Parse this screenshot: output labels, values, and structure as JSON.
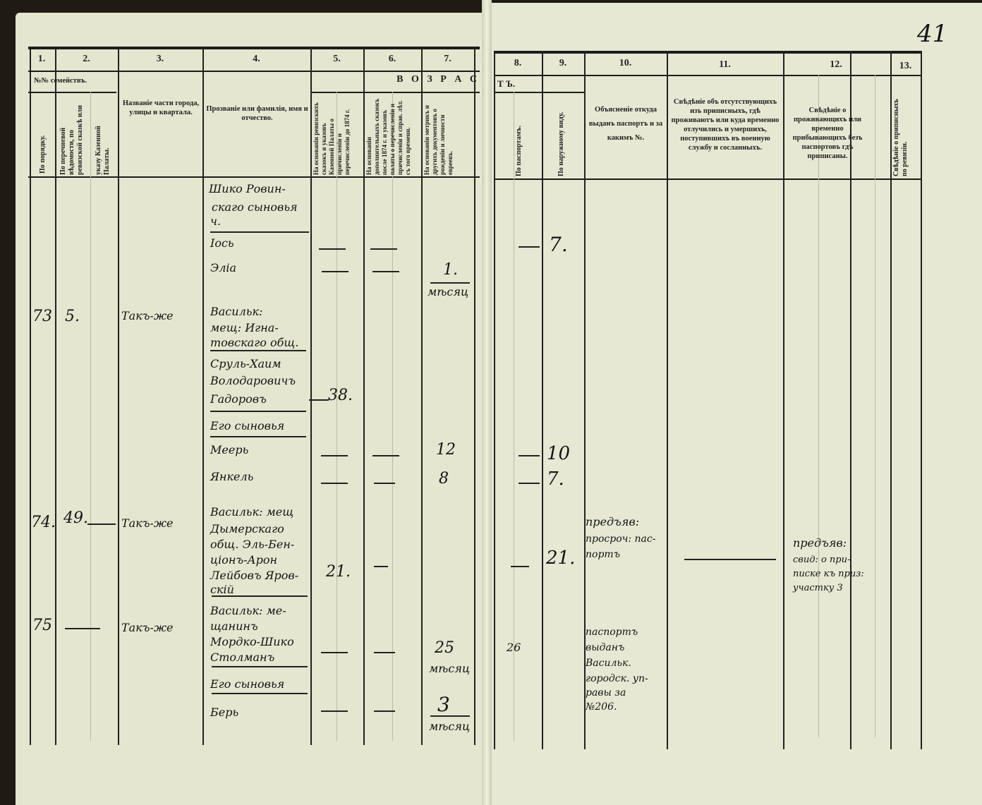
{
  "page_number": "41",
  "header": {
    "col_numbers": [
      "1.",
      "2.",
      "3.",
      "4.",
      "5.",
      "6.",
      "7.",
      "8.",
      "9.",
      "10.",
      "11.",
      "12.",
      "13."
    ],
    "families_label": "№№ семействъ.",
    "age_label_left": "В О З Р А С",
    "age_label_right": "Т Ъ.",
    "col1": "По порядку.",
    "col2a": "По перечневой вѣдомости, по ревизской сказкѣ или",
    "col2b": "указу Казенной Палаты.",
    "col3": "Названіе части города, улицы и квартала.",
    "col4": "Прозваніе или фамилія, имя и отчество.",
    "col5": "На основаніи ревизскихъ сказокъ и указовъ Казенной Палаты о причисленіи и перечисленіи до 1874 г.",
    "col6": "На основаніи дополнительныхъ сказокъ после 1874 г. и указовъ палаты о перечисленіи и причисленіи и справ. лѣт. съ того времени.",
    "col7": "На основаніи метрикъ и другихъ документовъ о рожденіи и личности евреевъ.",
    "col8": "По паспортамъ.",
    "col9": "По наружному виду.",
    "col10": "Объясненіе откуда выданъ паспортъ и за какимъ №.",
    "col11": "Свѣдѣніе объ отсутствующихъ изъ приписныхъ, гдѣ проживаютъ или куда временно отлучились и умершихъ, поступившихъ въ военную службу и сосланныхъ.",
    "col12": "Свѣдѣніе о проживающихъ или временно прибывающихъ безъ паспортовъ гдѣ приписаны.",
    "col13": "Свѣдѣніе о приписныхъ по ревизіи."
  },
  "entries": {
    "names": [
      "Шико Ровин-",
      "скаго сыновья",
      "ч.",
      "Іось",
      "Эліа",
      "Васильк:",
      "мещ: Игна-",
      "товскаго общ.",
      "Сруль-Хаим",
      "Володаровичъ",
      "Гадоровъ",
      "Его сыновья",
      "Меерь",
      "Янкель",
      "Васильк: мещ",
      "Дымерскаго",
      "общ. Эль-Бен-",
      "ціонъ-Арон",
      "Лейбовъ Яров-",
      "скій",
      "Васильк: ме-",
      "щанинъ",
      "Мордко-Шико",
      "Столманъ",
      "Его сыновья",
      "Берь"
    ],
    "row_numbers": [
      "73",
      "74.",
      "75"
    ],
    "family_numbers": [
      "5.",
      "49."
    ],
    "streets": [
      "Такъ-же",
      "Такъ-же",
      "Такъ-же"
    ],
    "col5_ages": [
      "38.",
      "21."
    ],
    "col7_ages": [
      "1.",
      "мѣсяц",
      "12",
      "8",
      "25",
      "мѣсяц",
      "3",
      "мѣсяц"
    ],
    "col8_values": [
      "26"
    ],
    "col9_ages": [
      "7.",
      "10",
      "7.",
      "21."
    ],
    "col10_notes": [
      "предъяв:",
      "просроч: пас-",
      "портъ",
      "паспортъ",
      "выданъ",
      "Васильк.",
      "городск. уп-",
      "равы за",
      "№206."
    ],
    "col12_notes": [
      "предъяв:",
      "свид: о при-",
      "писке къ приз:",
      "участку 3"
    ]
  }
}
